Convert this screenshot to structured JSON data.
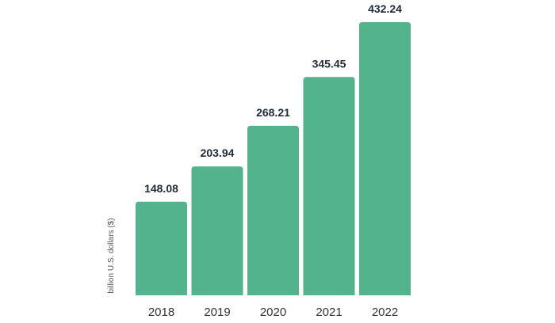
{
  "chart_data": {
    "type": "bar",
    "title": "",
    "xlabel": "",
    "ylabel": "billion U.S. dollars ($)",
    "categories": [
      "2018",
      "2019",
      "2020",
      "2021",
      "2022"
    ],
    "values": [
      148.08,
      203.94,
      268.21,
      345.45,
      432.24
    ],
    "value_labels": [
      "148.08",
      "203.94",
      "268.21",
      "345.45",
      "432.24"
    ],
    "ylim": [
      0,
      432.24
    ],
    "grid": false,
    "legend": "none",
    "bar_color": "#52b38c",
    "label_color": "#1e2a38"
  }
}
